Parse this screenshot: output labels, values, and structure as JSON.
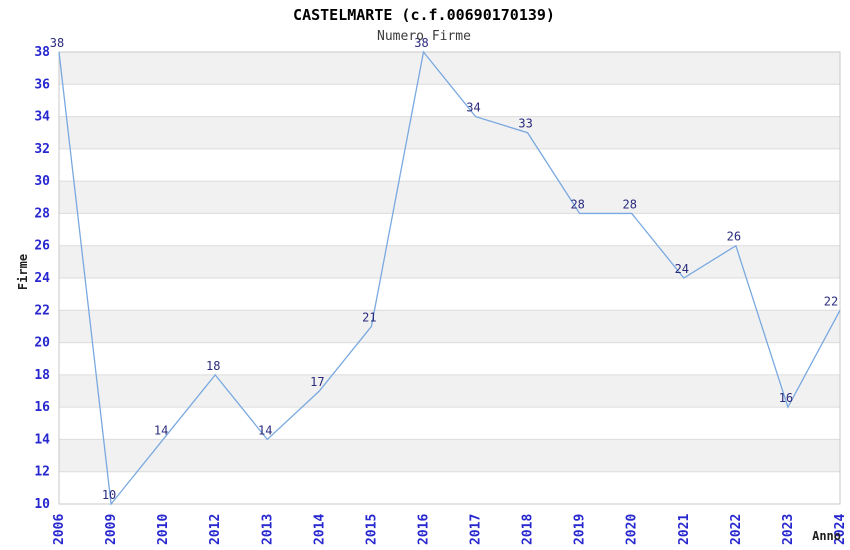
{
  "chart_data": {
    "type": "line",
    "title": "CASTELMARTE (c.f.00690170139)",
    "subtitle": "Numero Firme",
    "xlabel": "Anno",
    "ylabel": "Firme",
    "categories": [
      "2006",
      "2009",
      "2010",
      "2012",
      "2013",
      "2014",
      "2015",
      "2016",
      "2017",
      "2018",
      "2019",
      "2020",
      "2021",
      "2022",
      "2023",
      "2024"
    ],
    "values": [
      38,
      10,
      14,
      18,
      14,
      17,
      21,
      38,
      34,
      33,
      28,
      28,
      24,
      26,
      16,
      22
    ],
    "ylim": [
      10,
      38
    ],
    "ytick_step": 2,
    "yticks": [
      10,
      12,
      14,
      16,
      18,
      20,
      22,
      24,
      26,
      28,
      30,
      32,
      34,
      36,
      38
    ],
    "xtick_rotation": -90,
    "grid": "horizontal-bands",
    "legend": "none",
    "point_markers": "none",
    "colors": {
      "line": "#79a9e0",
      "tick_label": "#2727cf",
      "data_label": "#2b2b7d",
      "band": "#f1f1f1",
      "gridline": "#dcdcdc",
      "plot_border": "#c9c9c9",
      "title": "#000000",
      "subtitle": "#3a3a3a",
      "axis_title": "#1f1f1f",
      "background": "#ffffff"
    }
  }
}
